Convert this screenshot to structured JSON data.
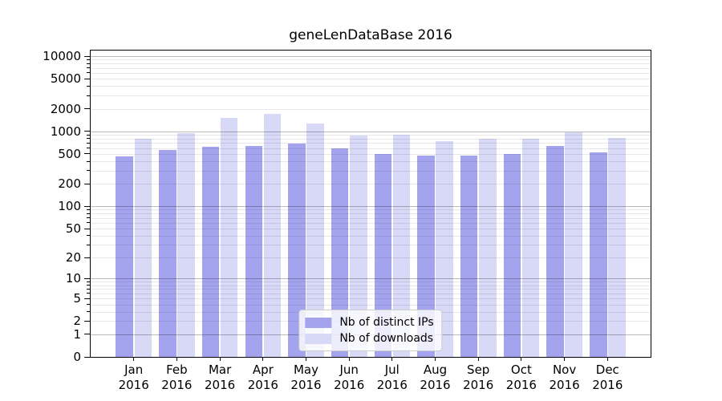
{
  "chart_data": {
    "type": "bar",
    "title": "geneLenDataBase 2016",
    "categories": [
      "Jan",
      "Feb",
      "Mar",
      "Apr",
      "May",
      "Jun",
      "Jul",
      "Aug",
      "Sep",
      "Oct",
      "Nov",
      "Dec"
    ],
    "year_label": "2016",
    "series": [
      {
        "name": "Nb of distinct IPs",
        "color": "#a4a4ee",
        "values": [
          460,
          565,
          630,
          635,
          695,
          595,
          495,
          475,
          480,
          505,
          640,
          530
        ]
      },
      {
        "name": "Nb of downloads",
        "color": "#d8d8f7",
        "values": [
          800,
          945,
          1500,
          1730,
          1260,
          875,
          905,
          735,
          790,
          790,
          980,
          825
        ]
      }
    ],
    "y_ticks": [
      0,
      1,
      2,
      5,
      10,
      20,
      50,
      100,
      200,
      500,
      1000,
      2000,
      5000,
      10000
    ],
    "y_scale": "log10(value+1)",
    "ylim": [
      0,
      11900
    ],
    "xlabel": "",
    "ylabel": "",
    "grid": "on (major darker at powers of 10, faint minors, drawn over bars)",
    "legend_position": "lower center"
  }
}
